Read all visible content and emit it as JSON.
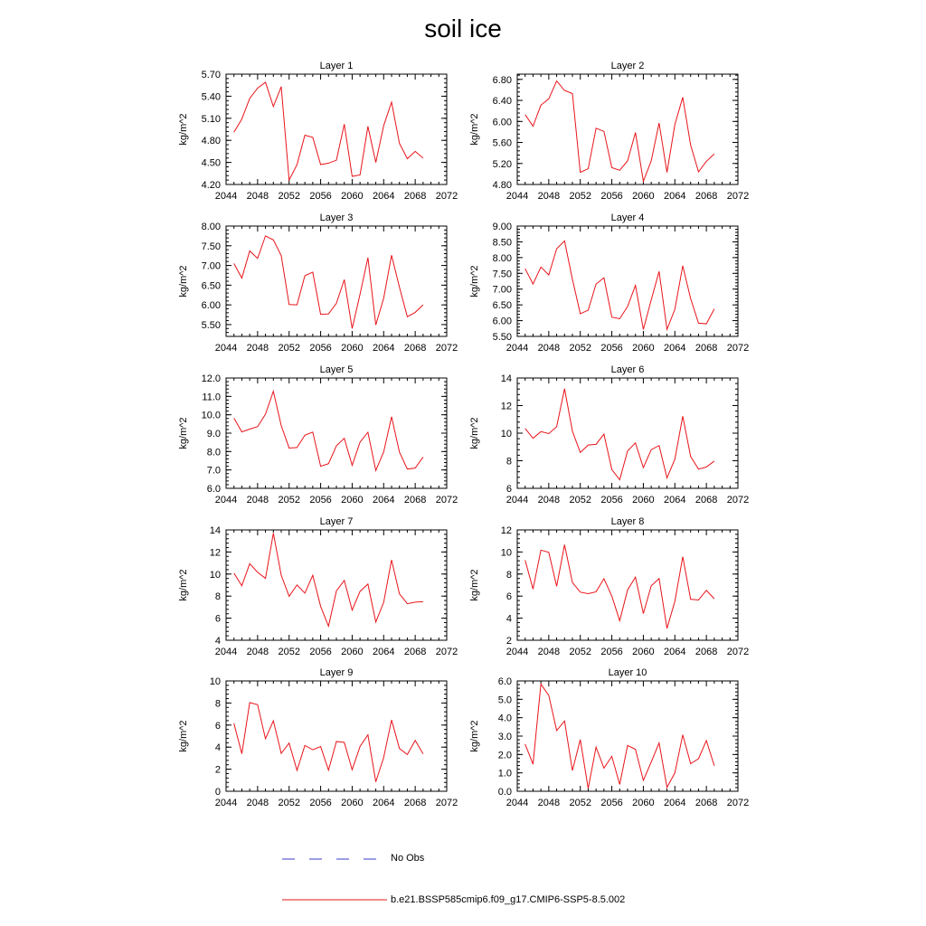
{
  "title": "soil ice",
  "legend": {
    "obs_label": "No Obs",
    "obs_color": "#3b3bcc",
    "model_label": "b.e21.BSSP585cmip6.f09_g17.CMIP6-SSP5-8.5.002",
    "model_color": "#e8141a"
  },
  "x_ticks": [
    2044,
    2048,
    2052,
    2056,
    2060,
    2064,
    2068,
    2072
  ],
  "x_values": [
    2045,
    2046,
    2047,
    2048,
    2049,
    2050,
    2051,
    2052,
    2053,
    2054,
    2055,
    2056,
    2057,
    2058,
    2059,
    2060,
    2061,
    2062,
    2063,
    2064,
    2065,
    2066,
    2067,
    2068,
    2069
  ],
  "chart_data": [
    {
      "type": "line",
      "title": "Layer 1",
      "xlabel": "",
      "ylabel": "kg/m^2",
      "xlim": [
        2044,
        2072
      ],
      "ylim": [
        4.2,
        5.7
      ],
      "yticks": [
        "4.20",
        "4.50",
        "4.80",
        "5.10",
        "5.40",
        "5.70"
      ],
      "series": [
        {
          "values": [
            4.91,
            5.09,
            5.37,
            5.51,
            5.59,
            5.26,
            5.53,
            4.26,
            4.47,
            4.87,
            4.84,
            4.47,
            4.49,
            4.53,
            5.02,
            4.31,
            4.33,
            4.99,
            4.5,
            5.0,
            5.32,
            4.76,
            4.55,
            4.65,
            4.56
          ]
        }
      ]
    },
    {
      "type": "line",
      "title": "Layer 2",
      "xlabel": "",
      "ylabel": "kg/m^2",
      "xlim": [
        2044,
        2072
      ],
      "ylim": [
        4.8,
        6.9
      ],
      "yticks": [
        "4.80",
        "5.20",
        "5.60",
        "6.00",
        "6.40",
        "6.80"
      ],
      "series": [
        {
          "values": [
            6.13,
            5.91,
            6.31,
            6.43,
            6.77,
            6.59,
            6.53,
            5.03,
            5.1,
            5.87,
            5.81,
            5.12,
            5.07,
            5.25,
            5.79,
            4.86,
            5.25,
            5.97,
            5.03,
            5.94,
            6.46,
            5.55,
            5.04,
            5.24,
            5.38
          ]
        }
      ]
    },
    {
      "type": "line",
      "title": "Layer 3",
      "xlabel": "",
      "ylabel": "kg/m^2",
      "xlim": [
        2044,
        2072
      ],
      "ylim": [
        5.2,
        8.0
      ],
      "yticks": [
        "5.50",
        "6.00",
        "6.50",
        "7.00",
        "7.50",
        "8.00"
      ],
      "series": [
        {
          "values": [
            7.05,
            6.68,
            7.37,
            7.18,
            7.75,
            7.65,
            7.25,
            6.01,
            6.0,
            6.74,
            6.83,
            5.76,
            5.77,
            6.04,
            6.64,
            5.4,
            6.27,
            7.2,
            5.49,
            6.17,
            7.26,
            6.45,
            5.7,
            5.81,
            6.0
          ]
        }
      ]
    },
    {
      "type": "line",
      "title": "Layer 4",
      "xlabel": "",
      "ylabel": "kg/m^2",
      "xlim": [
        2044,
        2072
      ],
      "ylim": [
        5.5,
        9.0
      ],
      "yticks": [
        "5.50",
        "6.00",
        "6.50",
        "7.00",
        "7.50",
        "8.00",
        "8.50",
        "9.00"
      ],
      "series": [
        {
          "values": [
            7.65,
            7.16,
            7.7,
            7.45,
            8.28,
            8.53,
            7.31,
            6.22,
            6.33,
            7.16,
            7.36,
            6.11,
            6.06,
            6.45,
            7.12,
            5.72,
            6.66,
            7.56,
            5.72,
            6.36,
            7.74,
            6.7,
            5.92,
            5.9,
            6.37
          ]
        }
      ]
    },
    {
      "type": "line",
      "title": "Layer 5",
      "xlabel": "",
      "ylabel": "kg/m^2",
      "xlim": [
        2044,
        2072
      ],
      "ylim": [
        6.0,
        12.0
      ],
      "yticks": [
        "6.0",
        "7.0",
        "8.0",
        "9.0",
        "10.0",
        "11.0",
        "12.0"
      ],
      "series": [
        {
          "values": [
            9.82,
            9.07,
            9.22,
            9.35,
            10.03,
            11.28,
            9.41,
            8.19,
            8.22,
            8.89,
            9.06,
            7.2,
            7.34,
            8.31,
            8.72,
            7.25,
            8.51,
            9.05,
            6.97,
            7.98,
            9.89,
            7.97,
            7.05,
            7.1,
            7.7
          ]
        }
      ]
    },
    {
      "type": "line",
      "title": "Layer 6",
      "xlabel": "",
      "ylabel": "kg/m^2",
      "xlim": [
        2044,
        2072
      ],
      "ylim": [
        6,
        14
      ],
      "yticks": [
        "6",
        "8",
        "10",
        "12",
        "14"
      ],
      "series": [
        {
          "values": [
            10.34,
            9.63,
            10.11,
            9.97,
            10.47,
            13.22,
            10.14,
            8.6,
            9.14,
            9.19,
            9.93,
            7.36,
            6.62,
            8.71,
            9.29,
            7.5,
            8.8,
            9.1,
            6.75,
            8.11,
            11.23,
            8.31,
            7.39,
            7.55,
            7.97
          ]
        }
      ]
    },
    {
      "type": "line",
      "title": "Layer 7",
      "xlabel": "",
      "ylabel": "kg/m^2",
      "xlim": [
        2044,
        2072
      ],
      "ylim": [
        4,
        14
      ],
      "yticks": [
        "4",
        "6",
        "8",
        "10",
        "12",
        "14"
      ],
      "series": [
        {
          "values": [
            10.08,
            8.94,
            10.94,
            10.16,
            9.61,
            13.71,
            9.89,
            7.98,
            9.01,
            8.27,
            9.89,
            7.07,
            5.28,
            8.47,
            9.42,
            6.73,
            8.43,
            9.09,
            5.65,
            7.44,
            11.28,
            8.21,
            7.31,
            7.45,
            7.49
          ]
        }
      ]
    },
    {
      "type": "line",
      "title": "Layer 8",
      "xlabel": "",
      "ylabel": "kg/m^2",
      "xlim": [
        2044,
        2072
      ],
      "ylim": [
        2,
        12
      ],
      "yticks": [
        "2",
        "4",
        "6",
        "8",
        "10",
        "12"
      ],
      "series": [
        {
          "values": [
            9.25,
            6.64,
            10.17,
            9.97,
            6.89,
            10.66,
            7.23,
            6.36,
            6.22,
            6.39,
            7.58,
            6.0,
            3.77,
            6.56,
            7.72,
            4.42,
            6.93,
            7.59,
            3.07,
            5.52,
            9.57,
            5.72,
            5.65,
            6.52,
            5.76
          ]
        }
      ]
    },
    {
      "type": "line",
      "title": "Layer 9",
      "xlabel": "",
      "ylabel": "kg/m^2",
      "xlim": [
        2044,
        2072
      ],
      "ylim": [
        0,
        10
      ],
      "yticks": [
        "0",
        "2",
        "4",
        "6",
        "8",
        "10"
      ],
      "series": [
        {
          "values": [
            6.15,
            3.4,
            8.04,
            7.85,
            4.76,
            6.39,
            3.43,
            4.37,
            1.89,
            4.15,
            3.76,
            4.05,
            1.91,
            4.51,
            4.43,
            1.95,
            4.06,
            5.12,
            0.85,
            3.06,
            6.46,
            3.88,
            3.33,
            4.61,
            3.39
          ]
        }
      ]
    },
    {
      "type": "line",
      "title": "Layer 10",
      "xlabel": "",
      "ylabel": "kg/m^2",
      "xlim": [
        2044,
        2072
      ],
      "ylim": [
        0.0,
        6.0
      ],
      "yticks": [
        "0.0",
        "1.0",
        "2.0",
        "3.0",
        "4.0",
        "5.0",
        "6.0"
      ],
      "series": [
        {
          "values": [
            2.56,
            1.47,
            5.83,
            5.21,
            3.3,
            3.82,
            1.13,
            2.81,
            0.15,
            2.4,
            1.26,
            1.9,
            0.37,
            2.49,
            2.28,
            0.59,
            1.59,
            2.63,
            0.21,
            1.0,
            3.07,
            1.5,
            1.77,
            2.76,
            1.39
          ]
        }
      ]
    }
  ]
}
